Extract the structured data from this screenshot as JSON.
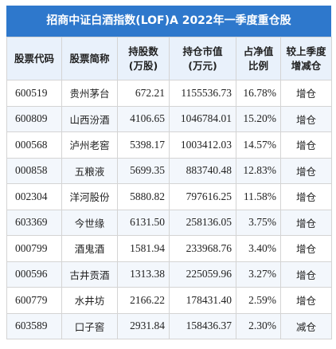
{
  "title": "招商中证白酒指数(LOF)A 2022年一季度重仓股",
  "colors": {
    "header_bar": "#2e78cc",
    "increase": "#d42a2a",
    "decrease": "#2e9a3c"
  },
  "columns": [
    [
      "股票代码"
    ],
    [
      "股票简称"
    ],
    [
      "持股数",
      "(万股)"
    ],
    [
      "持仓市值",
      "(万元)"
    ],
    [
      "占净值",
      "比例"
    ],
    [
      "较上季度",
      "增减仓"
    ]
  ],
  "rows": [
    {
      "code": "600519",
      "name": "贵州茅台",
      "shares": "672.21",
      "value": "1155536.73",
      "ratio": "16.78%",
      "change": "增仓",
      "dir": "up"
    },
    {
      "code": "600809",
      "name": "山西汾酒",
      "shares": "4106.65",
      "value": "1046784.01",
      "ratio": "15.20%",
      "change": "增仓",
      "dir": "up"
    },
    {
      "code": "000568",
      "name": "泸州老窖",
      "shares": "5398.17",
      "value": "1003412.03",
      "ratio": "14.57%",
      "change": "增仓",
      "dir": "up"
    },
    {
      "code": "000858",
      "name": "五粮液",
      "shares": "5699.35",
      "value": "883740.48",
      "ratio": "12.83%",
      "change": "增仓",
      "dir": "up"
    },
    {
      "code": "002304",
      "name": "洋河股份",
      "shares": "5880.82",
      "value": "797616.25",
      "ratio": "11.58%",
      "change": "增仓",
      "dir": "up"
    },
    {
      "code": "603369",
      "name": "今世缘",
      "shares": "6131.50",
      "value": "258136.05",
      "ratio": "3.75%",
      "change": "增仓",
      "dir": "up"
    },
    {
      "code": "000799",
      "name": "酒鬼酒",
      "shares": "1581.94",
      "value": "233968.76",
      "ratio": "3.40%",
      "change": "增仓",
      "dir": "up"
    },
    {
      "code": "000596",
      "name": "古井贡酒",
      "shares": "1313.38",
      "value": "225059.96",
      "ratio": "3.27%",
      "change": "增仓",
      "dir": "up"
    },
    {
      "code": "600779",
      "name": "水井坊",
      "shares": "2166.22",
      "value": "178431.40",
      "ratio": "2.59%",
      "change": "增仓",
      "dir": "up"
    },
    {
      "code": "603589",
      "name": "口子窖",
      "shares": "2931.84",
      "value": "158436.37",
      "ratio": "2.30%",
      "change": "减仓",
      "dir": "down"
    }
  ]
}
